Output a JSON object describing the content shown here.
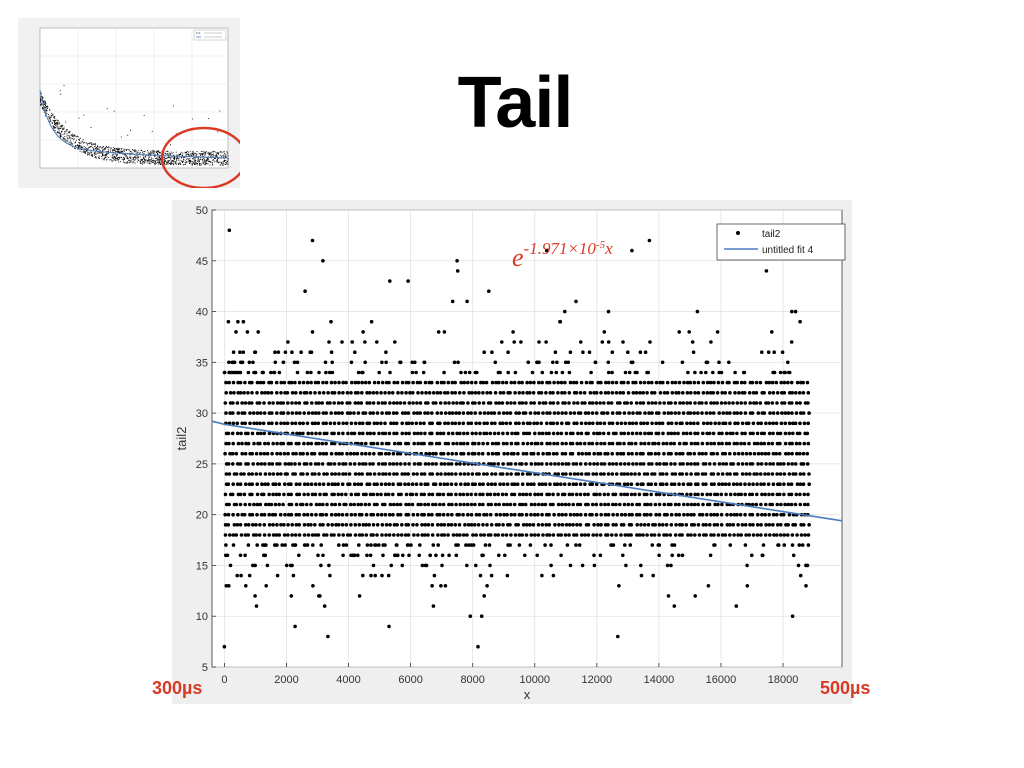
{
  "slide": {
    "title": "Tail",
    "left_label": "300µs",
    "right_label": "500µs",
    "highlight_color": "#d93a25"
  },
  "thumbnail": {
    "series": [
      {
        "name": "inter_20v",
        "marker": "dot",
        "color": "#000000"
      },
      {
        "name": "untitled fit 1",
        "marker": "line",
        "color": "#4a7dbf"
      }
    ],
    "highlight": "circle"
  },
  "chart_data": {
    "type": "scatter",
    "title": "",
    "xlabel": "x",
    "ylabel": "tail2",
    "xlim": [
      -400,
      19900
    ],
    "ylim": [
      5,
      50
    ],
    "xticks": [
      0,
      2000,
      4000,
      6000,
      8000,
      10000,
      12000,
      14000,
      16000,
      18000
    ],
    "yticks": [
      5,
      10,
      15,
      20,
      25,
      30,
      35,
      40,
      45,
      50
    ],
    "grid": true,
    "legend": "top-right",
    "annotation": {
      "base": "e",
      "exponent": "-1.971×10",
      "exp_power": "-5",
      "suffix": "x"
    },
    "series": [
      {
        "name": "tail2",
        "kind": "points",
        "color": "#000000",
        "value_range_x": [
          0,
          18900
        ],
        "dense_y_range": [
          18,
          33
        ],
        "sparse_y_range": [
          7,
          48
        ]
      },
      {
        "name": "untitled fit 4",
        "kind": "line",
        "color": "#4a7dbf",
        "x": [
          -400,
          0,
          19900
        ],
        "y": [
          29.2,
          28.9,
          19.4
        ]
      }
    ]
  }
}
